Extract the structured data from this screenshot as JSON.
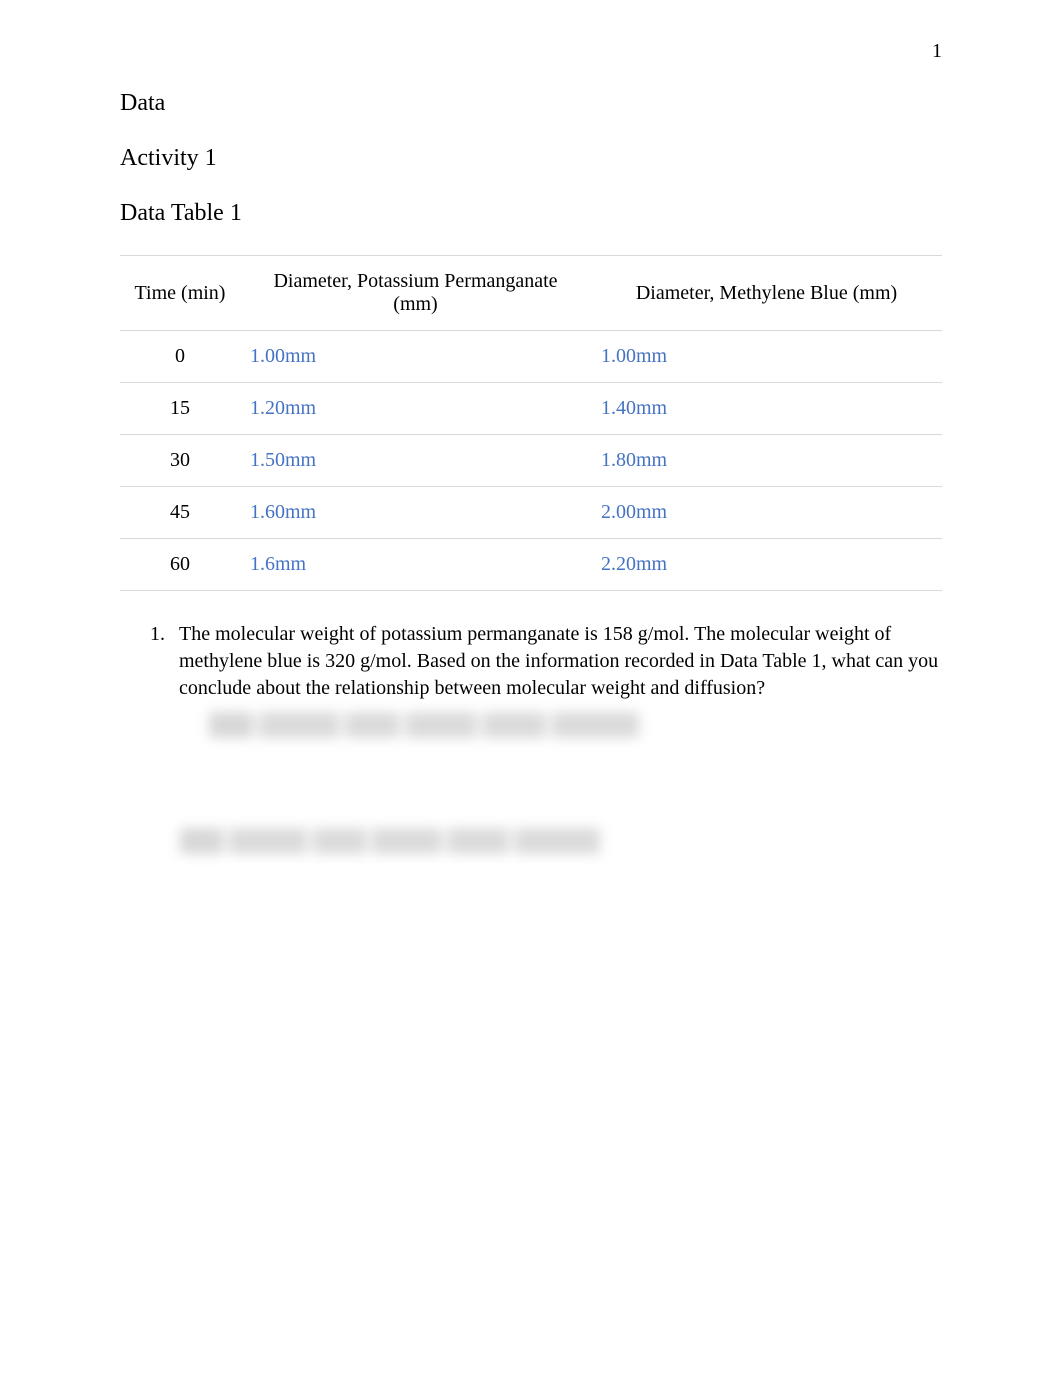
{
  "page_number": "1",
  "headings": {
    "data": "Data",
    "activity": "Activity 1",
    "table": "Data Table 1"
  },
  "table": {
    "columns": {
      "time": "Time (min)",
      "pp": "Diameter, Potassium Permanganate (mm)",
      "mb": "Diameter, Methylene Blue (mm)"
    },
    "rows": [
      {
        "time": "0",
        "pp": "1.00mm",
        "mb": "1.00mm"
      },
      {
        "time": "15",
        "pp": "1.20mm",
        "mb": "1.40mm"
      },
      {
        "time": "30",
        "pp": "1.50mm",
        "mb": "1.80mm"
      },
      {
        "time": "45",
        "pp": "1.60mm",
        "mb": "2.00mm"
      },
      {
        "time": "60",
        "pp": "1.6mm",
        "mb": "2.20mm"
      }
    ],
    "col_widths": {
      "time": 120,
      "pp": 350,
      "mb": 350
    },
    "border_color": "#d9d9d9",
    "value_color": "#4472c4",
    "text_color": "#000000",
    "fontsize": 20
  },
  "question": {
    "number": "1.",
    "text": "The molecular weight of potassium permanganate is 158 g/mol. The molecular weight of methylene blue is 320 g/mol. Based on the information recorded in Data Table 1, what can you conclude about the relationship between molecular weight and diffusion?"
  },
  "colors": {
    "background": "#ffffff",
    "text": "#000000",
    "link_blue": "#4472c4",
    "table_border": "#d9d9d9"
  },
  "typography": {
    "font_family": "Times New Roman",
    "heading_fontsize": 24,
    "body_fontsize": 20
  }
}
